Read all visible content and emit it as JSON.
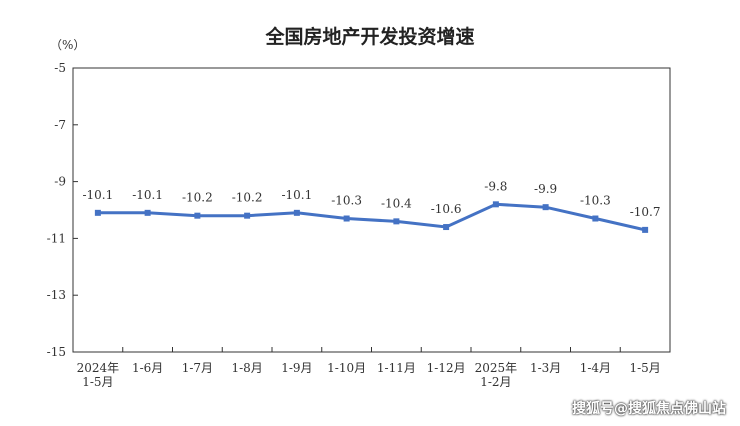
{
  "chart_data": {
    "type": "line",
    "title": "全国房地产开发投资增速",
    "unit": "（%）",
    "categories": [
      [
        "2024年",
        "1-5月"
      ],
      [
        "1-6月"
      ],
      [
        "1-7月"
      ],
      [
        "1-8月"
      ],
      [
        "1-9月"
      ],
      [
        "1-10月"
      ],
      [
        "1-11月"
      ],
      [
        "1-12月"
      ],
      [
        "2025年",
        "1-2月"
      ],
      [
        "1-3月"
      ],
      [
        "1-4月"
      ],
      [
        "1-5月"
      ]
    ],
    "values": [
      -10.1,
      -10.1,
      -10.2,
      -10.2,
      -10.1,
      -10.3,
      -10.4,
      -10.6,
      -9.8,
      -9.9,
      -10.3,
      -10.7
    ],
    "data_labels": [
      "-10.1",
      "-10.1",
      "-10.2",
      "-10.2",
      "-10.1",
      "-10.3",
      "-10.4",
      "-10.6",
      "-9.8",
      "-9.9",
      "-10.3",
      "-10.7"
    ],
    "ylim": [
      -15,
      -5
    ],
    "yticks": [
      -5,
      -7,
      -9,
      -11,
      -13,
      -15
    ],
    "line_color": "#4472c4",
    "grid": false
  },
  "watermark": "搜狐号@搜狐焦点佛山站"
}
